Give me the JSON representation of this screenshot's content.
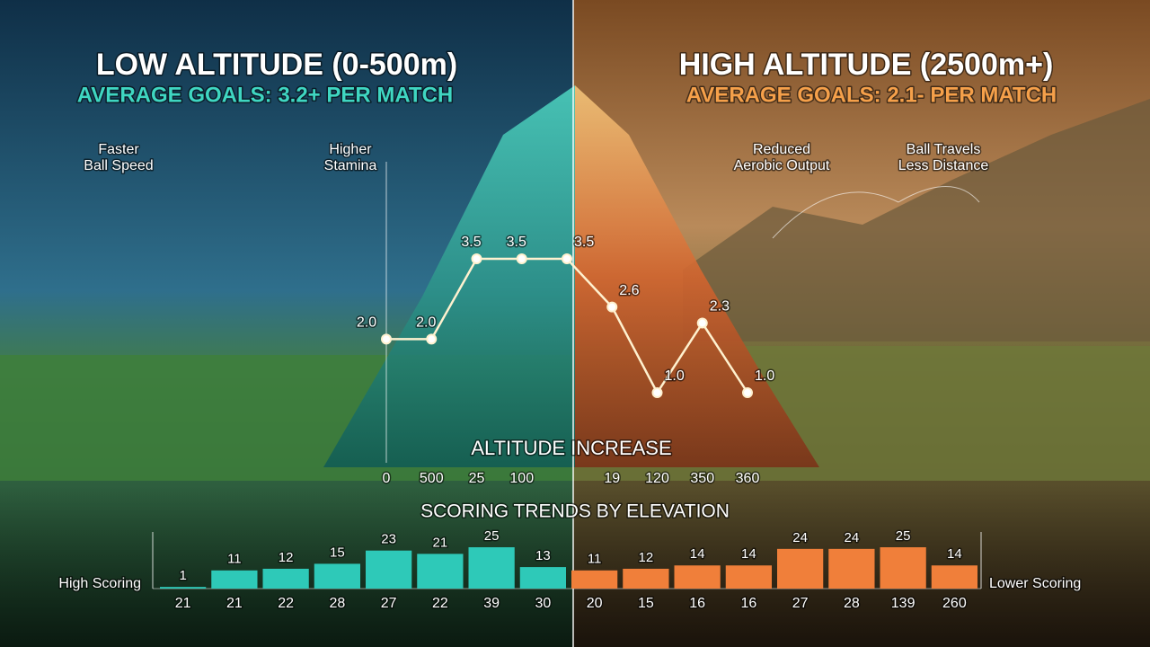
{
  "header": {
    "left": {
      "title": "LOW ALTITUDE (0-500m)",
      "subtitle": "AVERAGE GOALS: 3.2+ PER MATCH"
    },
    "right": {
      "title": "HIGH ALTITUDE (2500m+)",
      "subtitle": "AVERAGE GOALS: 2.1- PER MATCH"
    }
  },
  "annotations": [
    {
      "lines": [
        "Faster",
        "Ball Speed"
      ]
    },
    {
      "lines": [
        "Higher",
        "Stamina"
      ]
    },
    {
      "lines": [
        "Reduced",
        "Aerobic Output"
      ]
    },
    {
      "lines": [
        "Ball Travels",
        "Less Distance"
      ]
    }
  ],
  "chart_data": [
    {
      "type": "line",
      "x_label": "ALTITUDE INCREASE",
      "categories": [
        "0",
        "500",
        "25",
        "100",
        null,
        "19",
        "120",
        "350",
        "360"
      ],
      "values": [
        2.0,
        2.0,
        3.5,
        3.5,
        3.5,
        2.6,
        1.0,
        2.3,
        1.0
      ],
      "value_labels": [
        "2.0",
        "2.0",
        "3.5",
        "3.5",
        "3.5",
        "2.6",
        "1.0",
        "2.3",
        "1.0"
      ],
      "color": "#fff1cf"
    },
    {
      "type": "bar",
      "title": "SCORING TRENDS BY ELEVATION",
      "left_label": "High Scoring",
      "right_label": "Lower Scoring",
      "categories": [
        "21",
        "21",
        "22",
        "28",
        "27",
        "22",
        "39",
        "30",
        "20",
        "15",
        "16",
        "16",
        "27",
        "28",
        "139",
        "260"
      ],
      "values": [
        1,
        11,
        12,
        15,
        23,
        21,
        25,
        13,
        11,
        12,
        14,
        14,
        24,
        24,
        25,
        14
      ],
      "colors": [
        "#2ec9b8",
        "#2ec9b8",
        "#2ec9b8",
        "#2ec9b8",
        "#2ec9b8",
        "#2ec9b8",
        "#2ec9b8",
        "#2ec9b8",
        "#f07f3a",
        "#f07f3a",
        "#f07f3a",
        "#f07f3a",
        "#f07f3a",
        "#f07f3a",
        "#f07f3a",
        "#f07f3a"
      ]
    }
  ]
}
